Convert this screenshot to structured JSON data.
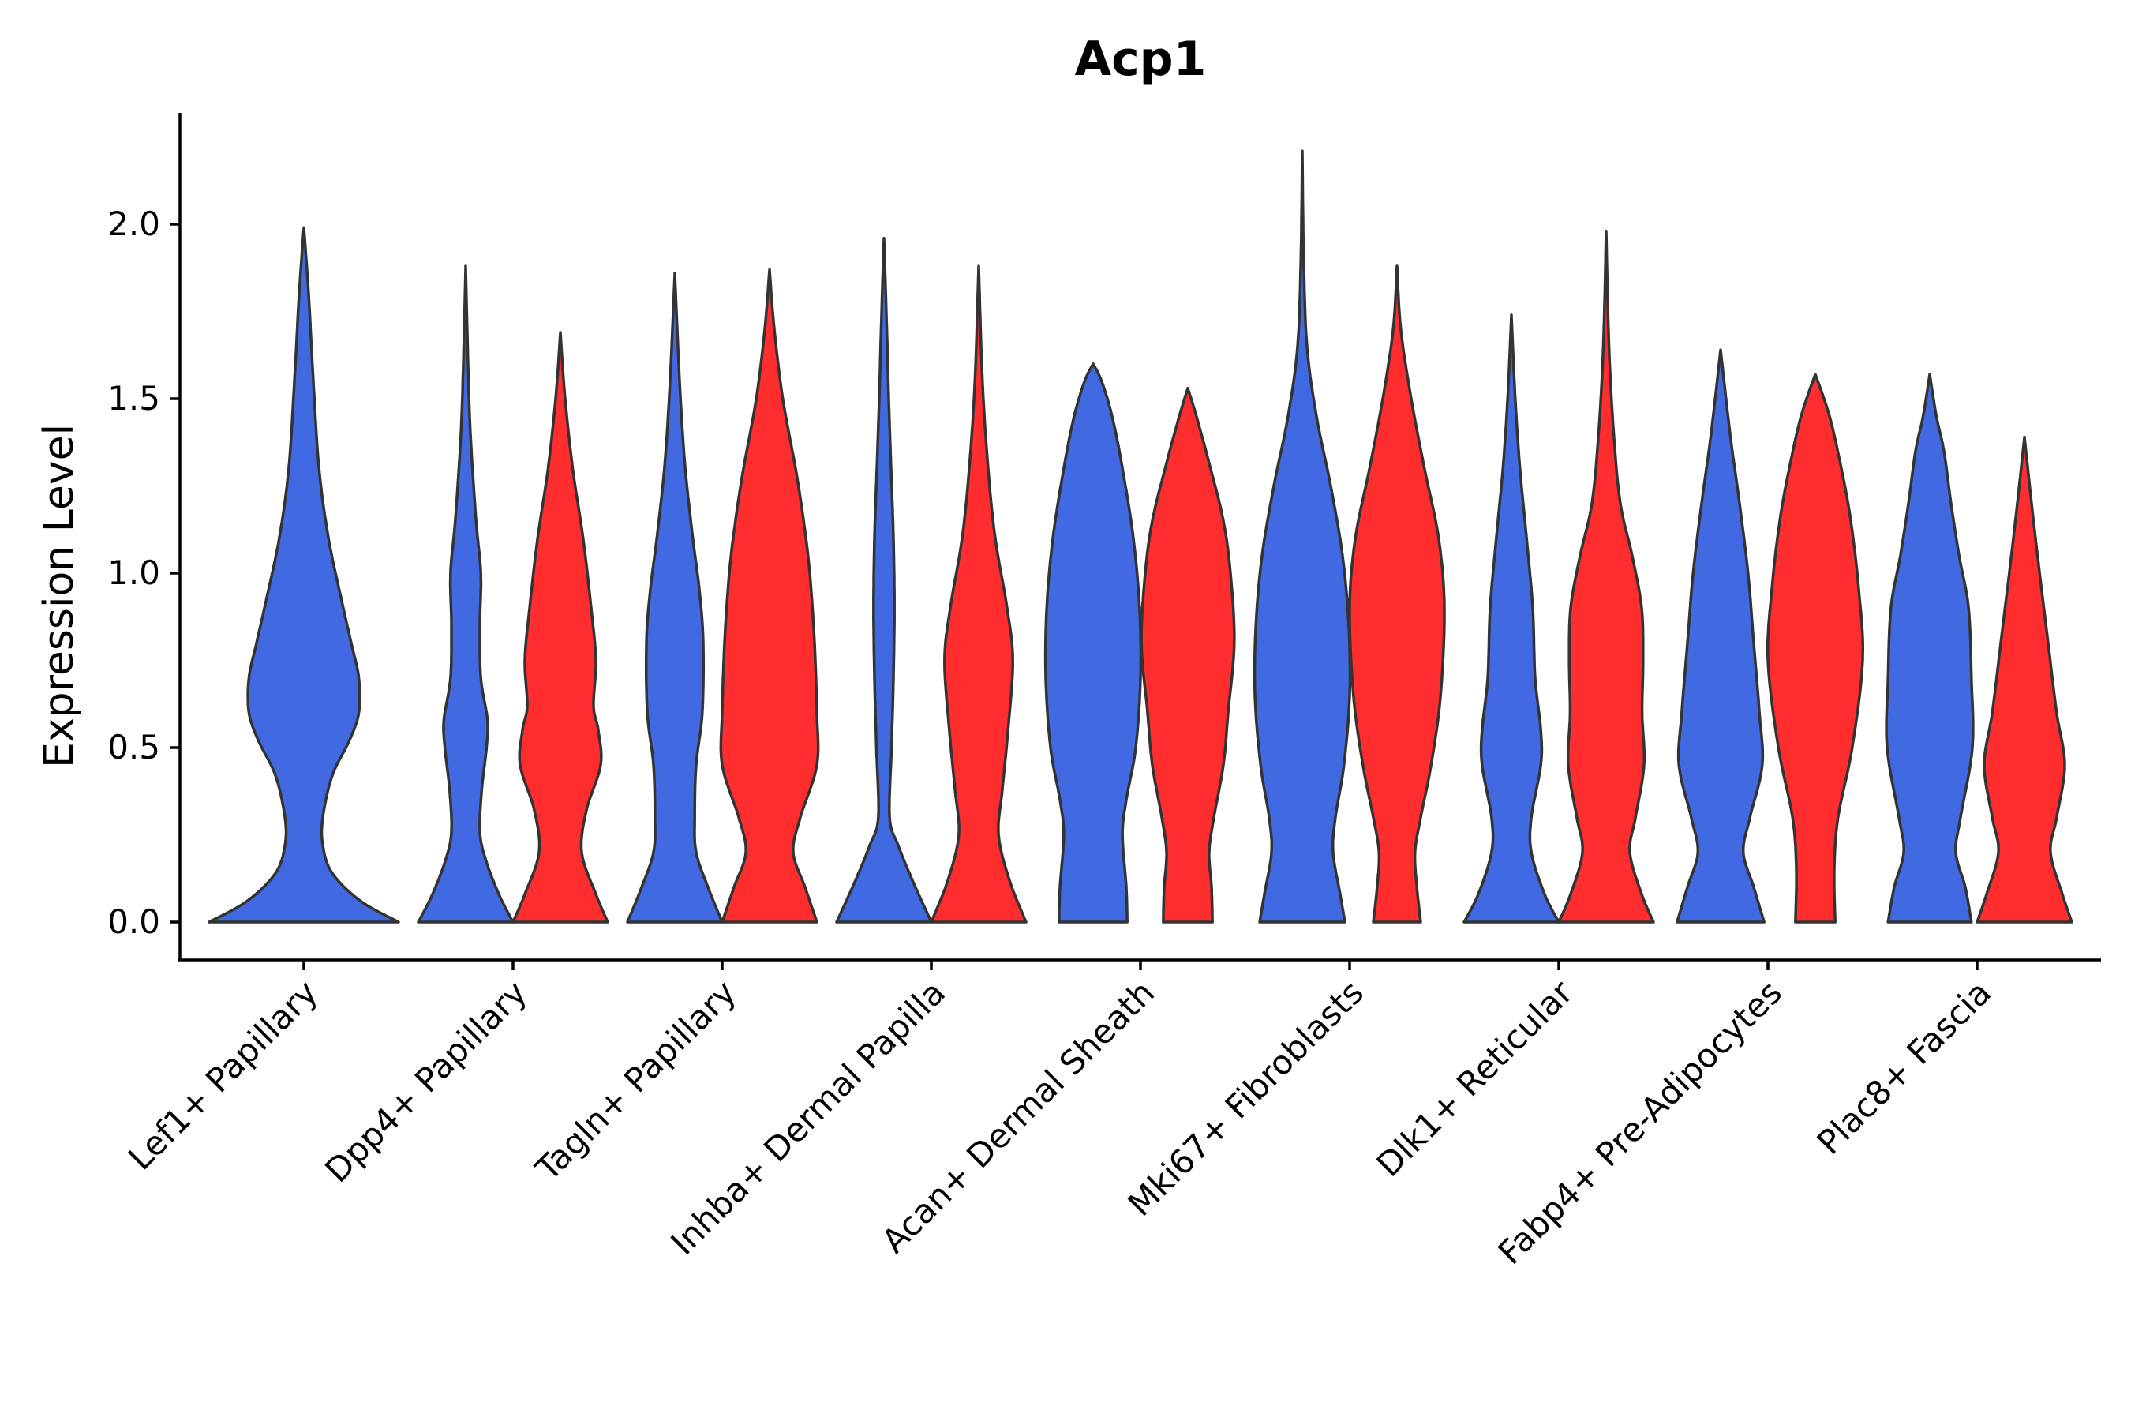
{
  "chart_data": {
    "type": "violin",
    "title": "Acp1",
    "xlabel": "",
    "ylabel": "Expression Level",
    "ylim": [
      -0.11,
      2.32
    ],
    "yticks": [
      "0.0",
      "0.5",
      "1.0",
      "1.5",
      "2.0"
    ],
    "ytick_values": [
      0,
      0.5,
      1.0,
      1.5,
      2.0
    ],
    "categories": [
      "Lef1+ Papillary",
      "Dpp4+ Papillary",
      "Tagln+ Papillary",
      "Inhba+ Dermal Papilla",
      "Acan+ Dermal Sheath",
      "Mki67+ Fibroblasts",
      "Dlk1+ Reticular",
      "Fabp4+ Pre-Adipocytes",
      "Plac8+ Fascia"
    ],
    "colors": {
      "blue": "#4169E1",
      "red": "#FF2D2D"
    },
    "violins": [
      {
        "cluster": 0,
        "slot": "center",
        "color": "blue",
        "max": 1.99,
        "profile": [
          [
            0,
            1.0
          ],
          [
            0.06,
            0.6
          ],
          [
            0.14,
            0.3
          ],
          [
            0.22,
            0.2
          ],
          [
            0.3,
            0.2
          ],
          [
            0.42,
            0.3
          ],
          [
            0.52,
            0.48
          ],
          [
            0.6,
            0.58
          ],
          [
            0.7,
            0.58
          ],
          [
            0.8,
            0.5
          ],
          [
            0.92,
            0.4
          ],
          [
            1.1,
            0.26
          ],
          [
            1.3,
            0.16
          ],
          [
            1.55,
            0.1
          ],
          [
            1.8,
            0.05
          ],
          [
            1.99,
            0.0
          ]
        ]
      },
      {
        "cluster": 1,
        "slot": "left",
        "color": "blue",
        "max": 1.88,
        "profile": [
          [
            0,
            1.0
          ],
          [
            0.08,
            0.7
          ],
          [
            0.18,
            0.42
          ],
          [
            0.26,
            0.3
          ],
          [
            0.38,
            0.34
          ],
          [
            0.5,
            0.44
          ],
          [
            0.58,
            0.46
          ],
          [
            0.7,
            0.32
          ],
          [
            0.85,
            0.3
          ],
          [
            1.0,
            0.32
          ],
          [
            1.15,
            0.22
          ],
          [
            1.4,
            0.1
          ],
          [
            1.6,
            0.05
          ],
          [
            1.88,
            0.0
          ]
        ]
      },
      {
        "cluster": 1,
        "slot": "right",
        "color": "red",
        "max": 1.69,
        "profile": [
          [
            0,
            1.0
          ],
          [
            0.08,
            0.75
          ],
          [
            0.2,
            0.45
          ],
          [
            0.32,
            0.55
          ],
          [
            0.45,
            0.85
          ],
          [
            0.55,
            0.8
          ],
          [
            0.62,
            0.7
          ],
          [
            0.75,
            0.75
          ],
          [
            0.9,
            0.65
          ],
          [
            1.1,
            0.48
          ],
          [
            1.3,
            0.26
          ],
          [
            1.5,
            0.1
          ],
          [
            1.69,
            0.0
          ]
        ]
      },
      {
        "cluster": 2,
        "slot": "left",
        "color": "blue",
        "max": 1.86,
        "profile": [
          [
            0,
            1.0
          ],
          [
            0.1,
            0.7
          ],
          [
            0.2,
            0.45
          ],
          [
            0.3,
            0.42
          ],
          [
            0.45,
            0.45
          ],
          [
            0.6,
            0.58
          ],
          [
            0.8,
            0.6
          ],
          [
            0.95,
            0.52
          ],
          [
            1.1,
            0.38
          ],
          [
            1.3,
            0.22
          ],
          [
            1.5,
            0.12
          ],
          [
            1.7,
            0.05
          ],
          [
            1.86,
            0.0
          ]
        ]
      },
      {
        "cluster": 2,
        "slot": "right",
        "color": "red",
        "max": 1.87,
        "profile": [
          [
            0,
            1.0
          ],
          [
            0.1,
            0.75
          ],
          [
            0.2,
            0.5
          ],
          [
            0.3,
            0.65
          ],
          [
            0.45,
            1.0
          ],
          [
            0.6,
            1.0
          ],
          [
            0.8,
            0.95
          ],
          [
            1.0,
            0.85
          ],
          [
            1.15,
            0.72
          ],
          [
            1.3,
            0.55
          ],
          [
            1.5,
            0.28
          ],
          [
            1.7,
            0.1
          ],
          [
            1.87,
            0.0
          ]
        ]
      },
      {
        "cluster": 3,
        "slot": "left",
        "color": "blue",
        "max": 1.96,
        "profile": [
          [
            0,
            1.0
          ],
          [
            0.12,
            0.6
          ],
          [
            0.22,
            0.3
          ],
          [
            0.3,
            0.12
          ],
          [
            0.5,
            0.16
          ],
          [
            0.7,
            0.2
          ],
          [
            0.9,
            0.22
          ],
          [
            1.1,
            0.2
          ],
          [
            1.3,
            0.15
          ],
          [
            1.5,
            0.1
          ],
          [
            1.7,
            0.06
          ],
          [
            1.96,
            0.0
          ]
        ]
      },
      {
        "cluster": 3,
        "slot": "right",
        "color": "red",
        "max": 1.88,
        "profile": [
          [
            0,
            1.0
          ],
          [
            0.12,
            0.65
          ],
          [
            0.25,
            0.42
          ],
          [
            0.38,
            0.5
          ],
          [
            0.55,
            0.62
          ],
          [
            0.75,
            0.72
          ],
          [
            0.9,
            0.6
          ],
          [
            1.1,
            0.35
          ],
          [
            1.3,
            0.2
          ],
          [
            1.55,
            0.08
          ],
          [
            1.88,
            0.0
          ]
        ]
      },
      {
        "cluster": 4,
        "slot": "left",
        "color": "blue",
        "max": 1.6,
        "profile": [
          [
            0,
            0.72
          ],
          [
            0.1,
            0.7
          ],
          [
            0.25,
            0.62
          ],
          [
            0.35,
            0.7
          ],
          [
            0.5,
            0.9
          ],
          [
            0.7,
            1.0
          ],
          [
            0.9,
            0.98
          ],
          [
            1.1,
            0.85
          ],
          [
            1.3,
            0.62
          ],
          [
            1.45,
            0.4
          ],
          [
            1.55,
            0.18
          ],
          [
            1.6,
            0.0
          ]
        ]
      },
      {
        "cluster": 4,
        "slot": "right",
        "color": "red",
        "max": 1.53,
        "profile": [
          [
            0,
            0.52
          ],
          [
            0.1,
            0.5
          ],
          [
            0.2,
            0.45
          ],
          [
            0.3,
            0.55
          ],
          [
            0.45,
            0.75
          ],
          [
            0.6,
            0.85
          ],
          [
            0.8,
            0.98
          ],
          [
            1.0,
            0.9
          ],
          [
            1.15,
            0.75
          ],
          [
            1.3,
            0.48
          ],
          [
            1.45,
            0.18
          ],
          [
            1.53,
            0.0
          ]
        ]
      },
      {
        "cluster": 5,
        "slot": "left",
        "color": "blue",
        "max": 2.21,
        "profile": [
          [
            0,
            0.9
          ],
          [
            0.08,
            0.8
          ],
          [
            0.2,
            0.65
          ],
          [
            0.3,
            0.7
          ],
          [
            0.45,
            0.88
          ],
          [
            0.65,
            1.0
          ],
          [
            0.85,
            0.98
          ],
          [
            1.05,
            0.85
          ],
          [
            1.25,
            0.6
          ],
          [
            1.45,
            0.3
          ],
          [
            1.65,
            0.1
          ],
          [
            1.9,
            0.03
          ],
          [
            2.21,
            0.0
          ]
        ]
      },
      {
        "cluster": 5,
        "slot": "right",
        "color": "red",
        "max": 1.88,
        "profile": [
          [
            0,
            0.5
          ],
          [
            0.1,
            0.42
          ],
          [
            0.2,
            0.38
          ],
          [
            0.3,
            0.5
          ],
          [
            0.45,
            0.72
          ],
          [
            0.65,
            0.92
          ],
          [
            0.9,
            1.0
          ],
          [
            1.1,
            0.88
          ],
          [
            1.3,
            0.58
          ],
          [
            1.5,
            0.3
          ],
          [
            1.7,
            0.08
          ],
          [
            1.88,
            0.0
          ]
        ]
      },
      {
        "cluster": 6,
        "slot": "left",
        "color": "blue",
        "max": 1.74,
        "profile": [
          [
            0,
            1.0
          ],
          [
            0.08,
            0.7
          ],
          [
            0.2,
            0.42
          ],
          [
            0.3,
            0.42
          ],
          [
            0.45,
            0.62
          ],
          [
            0.55,
            0.62
          ],
          [
            0.7,
            0.5
          ],
          [
            0.9,
            0.45
          ],
          [
            1.1,
            0.32
          ],
          [
            1.3,
            0.18
          ],
          [
            1.5,
            0.08
          ],
          [
            1.74,
            0.0
          ]
        ]
      },
      {
        "cluster": 6,
        "slot": "right",
        "color": "red",
        "max": 1.98,
        "profile": [
          [
            0,
            1.0
          ],
          [
            0.08,
            0.75
          ],
          [
            0.2,
            0.5
          ],
          [
            0.3,
            0.62
          ],
          [
            0.45,
            0.8
          ],
          [
            0.6,
            0.76
          ],
          [
            0.75,
            0.78
          ],
          [
            0.9,
            0.75
          ],
          [
            1.05,
            0.55
          ],
          [
            1.2,
            0.3
          ],
          [
            1.4,
            0.16
          ],
          [
            1.65,
            0.06
          ],
          [
            1.98,
            0.0
          ]
        ]
      },
      {
        "cluster": 7,
        "slot": "left",
        "color": "blue",
        "max": 1.64,
        "profile": [
          [
            0,
            0.92
          ],
          [
            0.1,
            0.7
          ],
          [
            0.2,
            0.48
          ],
          [
            0.3,
            0.62
          ],
          [
            0.45,
            0.88
          ],
          [
            0.6,
            0.82
          ],
          [
            0.8,
            0.7
          ],
          [
            1.0,
            0.58
          ],
          [
            1.2,
            0.4
          ],
          [
            1.4,
            0.2
          ],
          [
            1.64,
            0.0
          ]
        ]
      },
      {
        "cluster": 7,
        "slot": "right",
        "color": "red",
        "max": 1.57,
        "profile": [
          [
            0,
            0.42
          ],
          [
            0.15,
            0.4
          ],
          [
            0.3,
            0.48
          ],
          [
            0.5,
            0.78
          ],
          [
            0.75,
            1.0
          ],
          [
            0.95,
            0.92
          ],
          [
            1.15,
            0.75
          ],
          [
            1.3,
            0.55
          ],
          [
            1.45,
            0.3
          ],
          [
            1.57,
            0.0
          ]
        ]
      },
      {
        "cluster": 8,
        "slot": "left",
        "color": "blue",
        "max": 1.57,
        "profile": [
          [
            0,
            0.88
          ],
          [
            0.1,
            0.75
          ],
          [
            0.2,
            0.55
          ],
          [
            0.3,
            0.65
          ],
          [
            0.5,
            0.9
          ],
          [
            0.7,
            0.88
          ],
          [
            0.9,
            0.82
          ],
          [
            1.05,
            0.62
          ],
          [
            1.2,
            0.45
          ],
          [
            1.35,
            0.3
          ],
          [
            1.45,
            0.14
          ],
          [
            1.57,
            0.0
          ]
        ]
      },
      {
        "cluster": 8,
        "slot": "right",
        "color": "red",
        "max": 1.39,
        "profile": [
          [
            0,
            1.0
          ],
          [
            0.08,
            0.8
          ],
          [
            0.2,
            0.55
          ],
          [
            0.3,
            0.68
          ],
          [
            0.45,
            0.85
          ],
          [
            0.6,
            0.68
          ],
          [
            0.8,
            0.5
          ],
          [
            1.0,
            0.32
          ],
          [
            1.2,
            0.15
          ],
          [
            1.39,
            0.0
          ]
        ]
      }
    ]
  }
}
